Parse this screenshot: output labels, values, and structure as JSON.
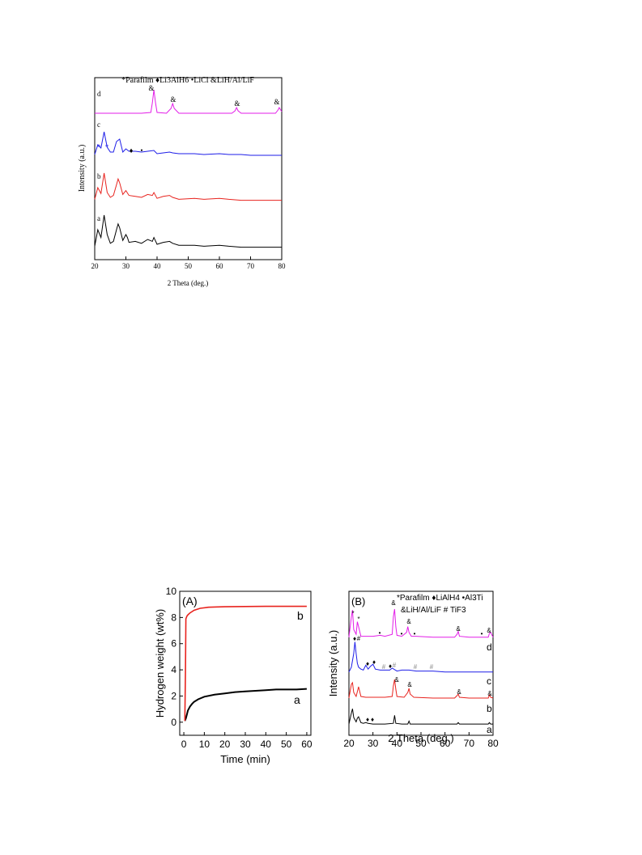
{
  "figures": {
    "top": {
      "legend_text": "*Parafilm  ♦Li3AlH6  •LiCl  &LiH/Al/LiF",
      "ylabel": "Intensity (a.u.)",
      "xlabel": "2 Theta (deg.)",
      "xticks": [
        "20",
        "30",
        "40",
        "50",
        "60",
        "70",
        "80"
      ],
      "curve_labels": [
        "a",
        "b",
        "c",
        "d"
      ]
    },
    "A": {
      "panel_label": "(A)",
      "ylabel": "Hydrogen weight (wt%)",
      "xlabel": "Time (min)",
      "xticks": [
        "0",
        "10",
        "20",
        "30",
        "40",
        "50",
        "60"
      ],
      "yticks": [
        "0",
        "2",
        "4",
        "6",
        "8",
        "10"
      ],
      "curve_labels": [
        "a",
        "b"
      ]
    },
    "B": {
      "panel_label": "(B)",
      "legend_line1": "*Parafilm  ♦LiAlH4   •Al3Ti",
      "legend_line2": "&LiH/Al/LiF  # TiF3",
      "ylabel": "Intensity (a.u.)",
      "xlabel": "2 Theta (deg.)",
      "xticks": [
        "20",
        "30",
        "40",
        "50",
        "60",
        "70",
        "80"
      ],
      "curve_labels": [
        "a",
        "b",
        "c",
        "d"
      ]
    }
  },
  "colors": {
    "a": "#000000",
    "b": "#e8231e",
    "c": "#1e1ee8",
    "d": "#e31ee8"
  },
  "chart_data": [
    {
      "type": "line",
      "title": "",
      "xlabel": "2 Theta (deg.)",
      "ylabel": "Intensity (a.u.)",
      "xlim": [
        20,
        80
      ],
      "legend": "*Parafilm ♦Li3AlH6 •LiCl &LiH/Al/LiF",
      "series": [
        {
          "name": "a",
          "x": [
            20,
            21,
            22,
            23,
            24,
            25,
            26,
            27,
            27.5,
            28,
            29,
            30,
            30.5,
            31,
            33,
            35,
            37,
            38.5,
            39,
            40,
            42,
            44,
            45,
            47,
            52,
            55,
            60,
            63,
            67,
            70,
            75,
            80
          ],
          "y": [
            0.3,
            2,
            1.2,
            3.5,
            1.5,
            0.6,
            0.8,
            2,
            2.6,
            2.2,
            0.9,
            1.5,
            1.2,
            0.7,
            0.8,
            0.6,
            1,
            0.8,
            1.2,
            0.5,
            0.7,
            0.8,
            0.6,
            0.4,
            0.4,
            0.3,
            0.4,
            0.3,
            0.2,
            0.2,
            0.2,
            0.2
          ]
        },
        {
          "name": "b",
          "x": [
            20,
            21,
            22,
            23,
            24,
            25,
            26,
            27,
            27.5,
            28,
            29,
            30,
            31,
            33,
            35,
            37,
            38.5,
            39,
            40,
            42,
            44,
            45,
            47,
            52,
            55,
            60,
            63,
            67,
            70,
            75,
            80
          ],
          "y": [
            0.3,
            1.5,
            0.9,
            3,
            1,
            0.5,
            0.7,
            1.8,
            2.4,
            2,
            0.8,
            1.2,
            0.7,
            0.6,
            0.5,
            0.8,
            0.7,
            1,
            0.4,
            0.6,
            0.7,
            0.5,
            0.3,
            0.4,
            0.3,
            0.4,
            0.3,
            0.2,
            0.2,
            0.2,
            0.2
          ]
        },
        {
          "name": "c",
          "x": [
            20,
            21,
            22,
            23,
            24,
            25,
            26,
            27,
            28,
            29,
            30,
            31,
            33,
            35,
            37,
            39,
            40,
            42,
            44,
            45,
            47,
            52,
            55,
            60,
            63,
            67,
            70,
            75,
            80
          ],
          "y": [
            0.2,
            1.4,
            1,
            3,
            1.1,
            0.5,
            0.5,
            1.8,
            2.1,
            0.5,
            0.9,
            0.6,
            0.6,
            0.5,
            0.6,
            0.7,
            0.3,
            0.4,
            0.5,
            0.4,
            0.3,
            0.3,
            0.2,
            0.3,
            0.2,
            0.2,
            0.1,
            0.1,
            0.1
          ]
        },
        {
          "name": "d",
          "x": [
            20,
            25,
            30,
            35,
            38,
            38.5,
            39,
            39.5,
            40,
            43,
            44.5,
            45,
            45.5,
            47,
            55,
            60,
            64,
            65,
            65.5,
            66,
            67,
            75,
            78,
            78.8,
            79.2,
            80
          ],
          "y": [
            0.2,
            0.2,
            0.2,
            0.2,
            0.3,
            1.5,
            3.1,
            1.5,
            0.3,
            0.2,
            0.8,
            1.4,
            0.8,
            0.2,
            0.2,
            0.2,
            0.2,
            0.5,
            0.9,
            0.5,
            0.2,
            0.2,
            0.2,
            0.6,
            0.9,
            0.4
          ]
        }
      ]
    },
    {
      "type": "line",
      "title": "",
      "xlabel": "Time (min)",
      "ylabel": "Hydrogen weight (wt%)",
      "xlim": [
        -2,
        62
      ],
      "ylim": [
        -1,
        10
      ],
      "series": [
        {
          "name": "a",
          "x": [
            0.5,
            1,
            1.5,
            2,
            3,
            4,
            5,
            7,
            10,
            15,
            20,
            25,
            30,
            35,
            40,
            45,
            50,
            55,
            60
          ],
          "y": [
            0.1,
            0.3,
            0.6,
            0.9,
            1.2,
            1.4,
            1.55,
            1.75,
            1.95,
            2.1,
            2.2,
            2.3,
            2.35,
            2.4,
            2.45,
            2.5,
            2.5,
            2.5,
            2.55
          ]
        },
        {
          "name": "b",
          "x": [
            0.5,
            0.8,
            1,
            1.5,
            2,
            3,
            5,
            8,
            12,
            15,
            20,
            30,
            40,
            50,
            60
          ],
          "y": [
            0.1,
            4,
            7.9,
            8.1,
            8.2,
            8.35,
            8.55,
            8.7,
            8.78,
            8.8,
            8.82,
            8.84,
            8.85,
            8.85,
            8.85
          ]
        }
      ]
    },
    {
      "type": "line",
      "title": "",
      "xlabel": "2 Theta (deg.)",
      "ylabel": "Intensity (a.u.)",
      "xlim": [
        20,
        80
      ],
      "legend": "*Parafilm ♦LiAlH4 •Al3Ti &LiH/Al/LiF # TiF3",
      "series": [
        {
          "name": "a",
          "x": [
            20,
            21,
            21.5,
            22,
            23,
            23.5,
            24,
            25,
            26,
            27,
            28,
            30,
            35,
            38.5,
            39,
            39.5,
            42,
            44.5,
            45,
            45.5,
            50,
            60,
            65,
            65.5,
            66,
            70,
            78,
            78.5,
            79,
            80
          ],
          "y": [
            0.1,
            1.6,
            2.2,
            1,
            0.4,
            0.9,
            1.1,
            0.3,
            0.2,
            0.3,
            0.2,
            0.1,
            0.1,
            0.2,
            1.3,
            0.2,
            0.1,
            0.1,
            0.5,
            0.1,
            0.1,
            0.1,
            0.1,
            0.3,
            0.1,
            0.1,
            0.1,
            0.3,
            0.1,
            0.1
          ]
        },
        {
          "name": "b",
          "x": [
            20,
            21,
            21.5,
            22,
            23,
            24,
            25,
            27,
            30,
            35,
            38,
            38.5,
            39,
            39.5,
            40,
            43,
            44.5,
            45,
            45.5,
            47,
            55,
            64,
            65,
            65.5,
            66,
            70,
            78,
            78.5,
            79,
            80
          ],
          "y": [
            0.1,
            1.8,
            2,
            0.8,
            0.3,
            1.5,
            0.3,
            0.2,
            0.2,
            0.2,
            0.3,
            1.6,
            2.4,
            1.2,
            0.3,
            0.2,
            0.8,
            1.3,
            0.6,
            0.2,
            0.1,
            0.1,
            0.4,
            0.6,
            0.2,
            0.1,
            0.1,
            0.5,
            0.2,
            0.1
          ]
        },
        {
          "name": "c",
          "x": [
            20,
            21,
            22,
            22.5,
            23,
            23.5,
            24,
            25,
            26,
            27,
            28,
            29,
            30,
            31,
            33,
            35,
            37,
            38,
            40,
            42,
            45,
            48,
            52,
            55,
            60,
            65,
            70,
            75,
            80
          ],
          "y": [
            0.1,
            0.6,
            2,
            3.2,
            2,
            1,
            0.6,
            0.4,
            0.3,
            0.8,
            0.4,
            0.7,
            0.9,
            0.4,
            0.3,
            0.3,
            0.3,
            0.5,
            0.2,
            0.3,
            0.3,
            0.2,
            0.2,
            0.2,
            0.1,
            0.1,
            0.1,
            0.1,
            0.1
          ]
        },
        {
          "name": "d",
          "x": [
            20,
            21,
            21.5,
            22,
            23,
            23.5,
            24,
            25,
            27,
            30,
            33,
            35,
            38,
            38.5,
            39,
            39.5,
            40,
            42,
            44,
            44.5,
            45,
            46,
            48,
            55,
            64,
            65,
            65.5,
            66,
            70,
            75,
            78,
            78.5,
            79,
            80
          ],
          "y": [
            0.1,
            2.2,
            2.9,
            0.9,
            0.4,
            1.7,
            1.2,
            0.2,
            0.2,
            0.2,
            0.3,
            0.2,
            0.4,
            2.2,
            3,
            1.2,
            0.3,
            0.2,
            0.6,
            1.2,
            0.6,
            0.2,
            0.2,
            0.1,
            0.1,
            0.4,
            0.7,
            0.2,
            0.1,
            0.1,
            0.1,
            0.5,
            0.6,
            0.1
          ]
        }
      ]
    }
  ]
}
